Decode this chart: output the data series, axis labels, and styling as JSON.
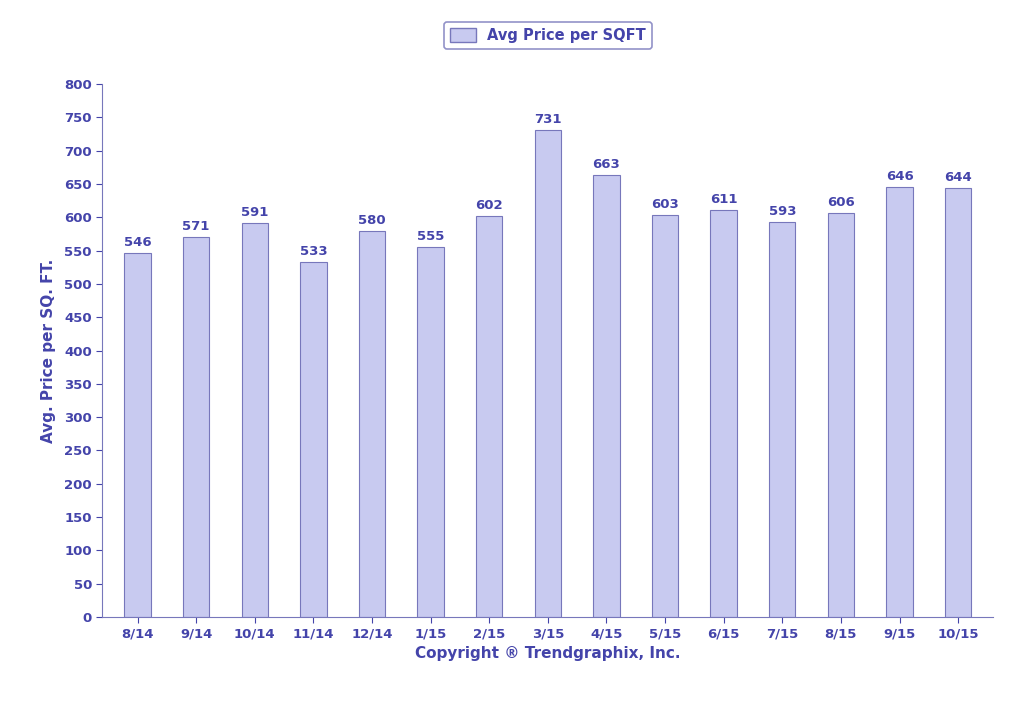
{
  "categories": [
    "8/14",
    "9/14",
    "10/14",
    "11/14",
    "12/14",
    "1/15",
    "2/15",
    "3/15",
    "4/15",
    "5/15",
    "6/15",
    "7/15",
    "8/15",
    "9/15",
    "10/15"
  ],
  "values": [
    546,
    571,
    591,
    533,
    580,
    555,
    602,
    731,
    663,
    603,
    611,
    593,
    606,
    646,
    644
  ],
  "bar_color": "#c8caf0",
  "bar_edgecolor": "#7777bb",
  "text_color": "#4444aa",
  "ylabel": "Avg. Price per SQ. FT.",
  "xlabel": "Copyright ® Trendgraphix, Inc.",
  "ylim": [
    0,
    800
  ],
  "ytick_interval": 50,
  "legend_label": "Avg Price per SQFT",
  "background_color": "#ffffff",
  "bar_label_fontsize": 9.5,
  "axis_label_fontsize": 11,
  "tick_fontsize": 9.5,
  "legend_fontsize": 10.5,
  "bar_width": 0.45
}
